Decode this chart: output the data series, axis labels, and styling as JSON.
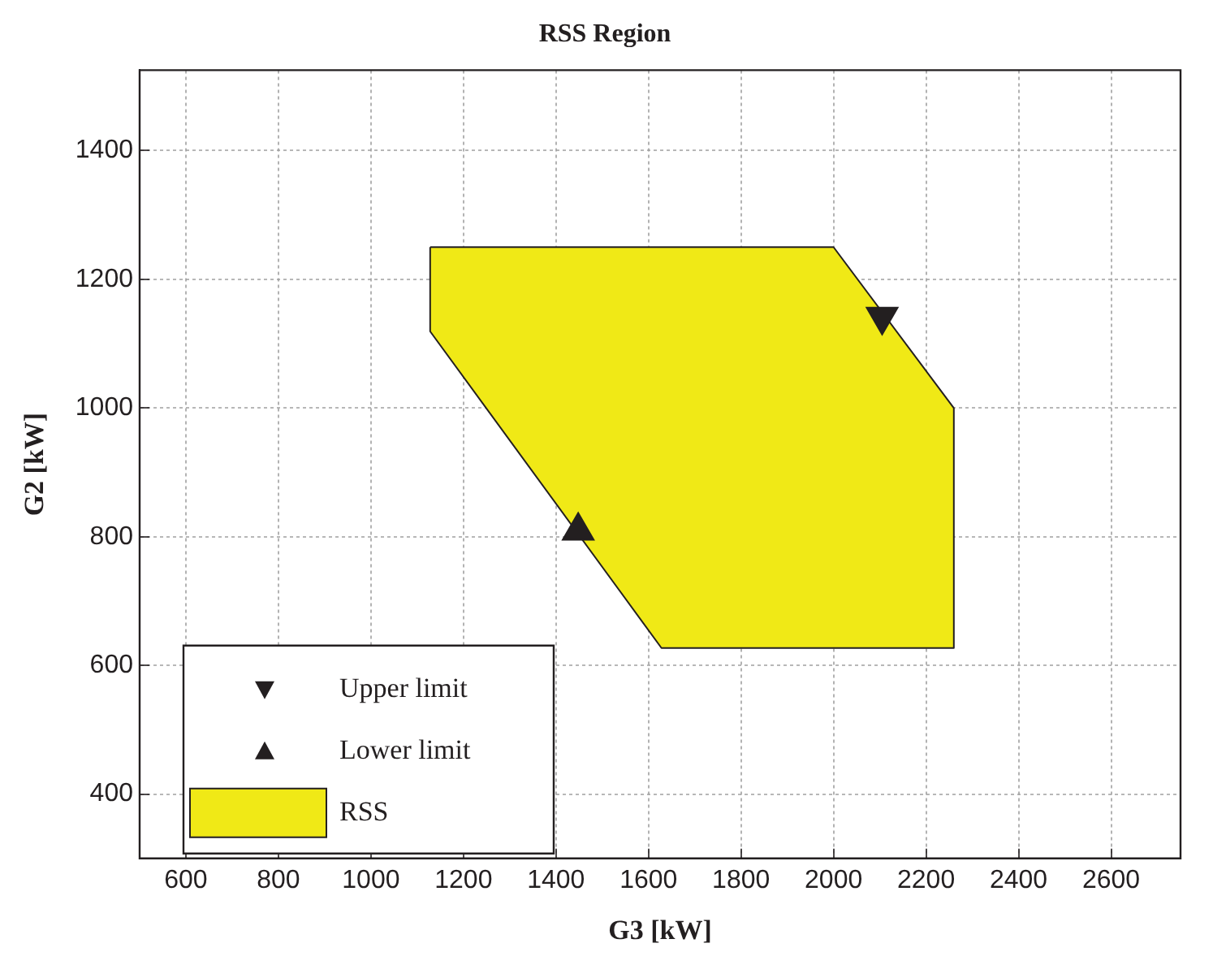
{
  "chart_data": {
    "type": "scatter",
    "title": "RSS Region",
    "xlabel": "G3 [kW]",
    "ylabel": "G2 [kW]",
    "xlim": [
      500,
      2750
    ],
    "xticks": [
      600,
      800,
      1000,
      1200,
      1400,
      1600,
      1800,
      2000,
      2200,
      2400,
      2600
    ],
    "ylim": [
      300,
      1525
    ],
    "yticks": [
      400,
      600,
      800,
      1000,
      1200,
      1400
    ],
    "grid": true,
    "legend": "bottom left",
    "series": [
      {
        "name": "Upper limit",
        "marker": "triangle_down",
        "color": "#231f20",
        "x": [
          2105
        ],
        "values": [
          1142
        ]
      },
      {
        "name": "Lower limit",
        "marker": "triangle",
        "color": "#231f20",
        "x": [
          1448
        ],
        "values": [
          809
        ]
      },
      {
        "name": "RSS",
        "type": "area",
        "color": "#f0e916",
        "x": [
          1128,
          2000,
          2260,
          2260,
          1628,
          1128,
          1128
        ],
        "values": [
          1250,
          1250,
          1000,
          627,
          627,
          1119,
          1250
        ]
      }
    ]
  }
}
